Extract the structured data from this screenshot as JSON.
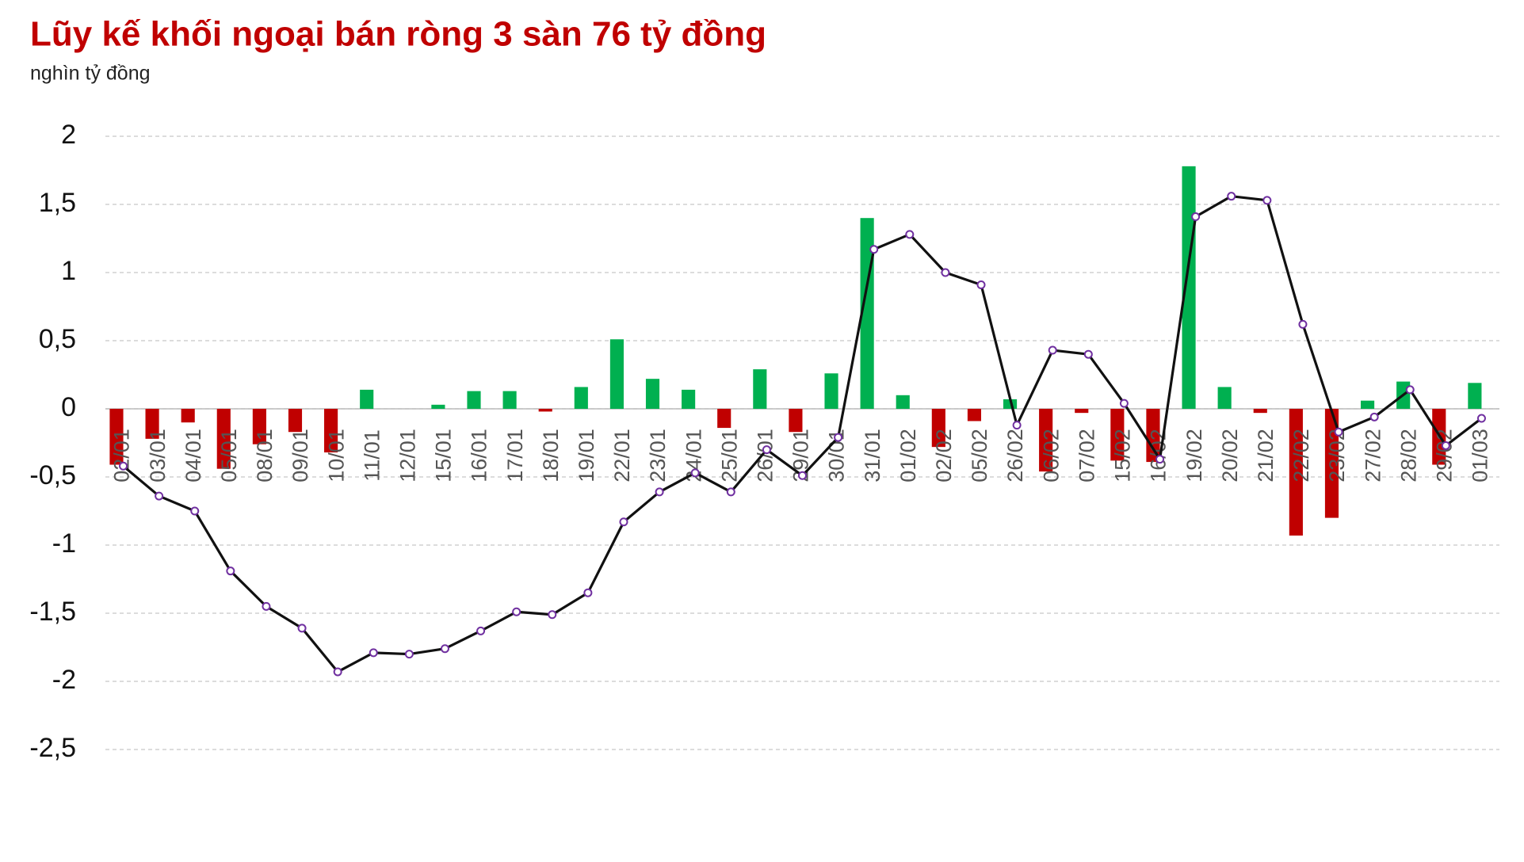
{
  "chart_data": {
    "type": "combo",
    "title": "Lũy kế khối ngoại bán ròng 3 sàn 76 tỷ đồng",
    "subtitle": "nghìn tỷ đồng",
    "categories": [
      "02/01",
      "03/01",
      "04/01",
      "05/01",
      "08/01",
      "09/01",
      "10/01",
      "11/01",
      "12/01",
      "15/01",
      "16/01",
      "17/01",
      "18/01",
      "19/01",
      "22/01",
      "23/01",
      "24/01",
      "25/01",
      "26/01",
      "29/01",
      "30/01",
      "31/01",
      "01/02",
      "02/02",
      "05/02",
      "26/02",
      "06/02",
      "07/02",
      "15/02",
      "16/02",
      "19/02",
      "20/02",
      "21/02",
      "22/02",
      "23/02",
      "27/02",
      "28/02",
      "29/02",
      "01/03"
    ],
    "series": [
      {
        "type": "bar",
        "color": "#00b050",
        "negative_color": "#c00000",
        "values": [
          -0.41,
          -0.22,
          -0.1,
          -0.44,
          -0.26,
          -0.17,
          -0.32,
          0.14,
          0,
          0.03,
          0.13,
          0.13,
          -0.02,
          0.16,
          0.51,
          0.22,
          0.14,
          -0.14,
          0.29,
          -0.17,
          0.26,
          1.4,
          0.1,
          -0.28,
          -0.09,
          0.07,
          -0.46,
          -0.03,
          -0.38,
          -0.39,
          1.78,
          0.16,
          -0.03,
          -0.93,
          -0.8,
          0.06,
          0.2,
          -0.41,
          0.19
        ]
      },
      {
        "type": "line",
        "color": "#111111",
        "marker_color": "#7030a0",
        "values": [
          -0.42,
          -0.64,
          -0.75,
          -1.19,
          -1.45,
          -1.61,
          -1.93,
          -1.79,
          -1.8,
          -1.76,
          -1.63,
          -1.49,
          -1.51,
          -1.35,
          -0.83,
          -0.61,
          -0.47,
          -0.61,
          -0.3,
          -0.49,
          -0.21,
          1.17,
          1.28,
          1.0,
          0.91,
          -0.12,
          0.43,
          0.4,
          0.04,
          -0.37,
          1.41,
          1.56,
          1.53,
          0.62,
          -0.17,
          -0.06,
          0.14,
          -0.27,
          -0.07
        ]
      }
    ],
    "ylim": [
      -2.5,
      2
    ],
    "yticks": [
      {
        "value": -2.5,
        "label": "-2,5"
      },
      -2,
      {
        "value": -1.5,
        "label": "-1,5"
      },
      -1,
      {
        "value": -0.5,
        "label": "-0,5"
      },
      0,
      {
        "value": 0.5,
        "label": "0,5"
      },
      1,
      {
        "value": 1.5,
        "label": "1,5"
      },
      2
    ],
    "grid": true
  }
}
